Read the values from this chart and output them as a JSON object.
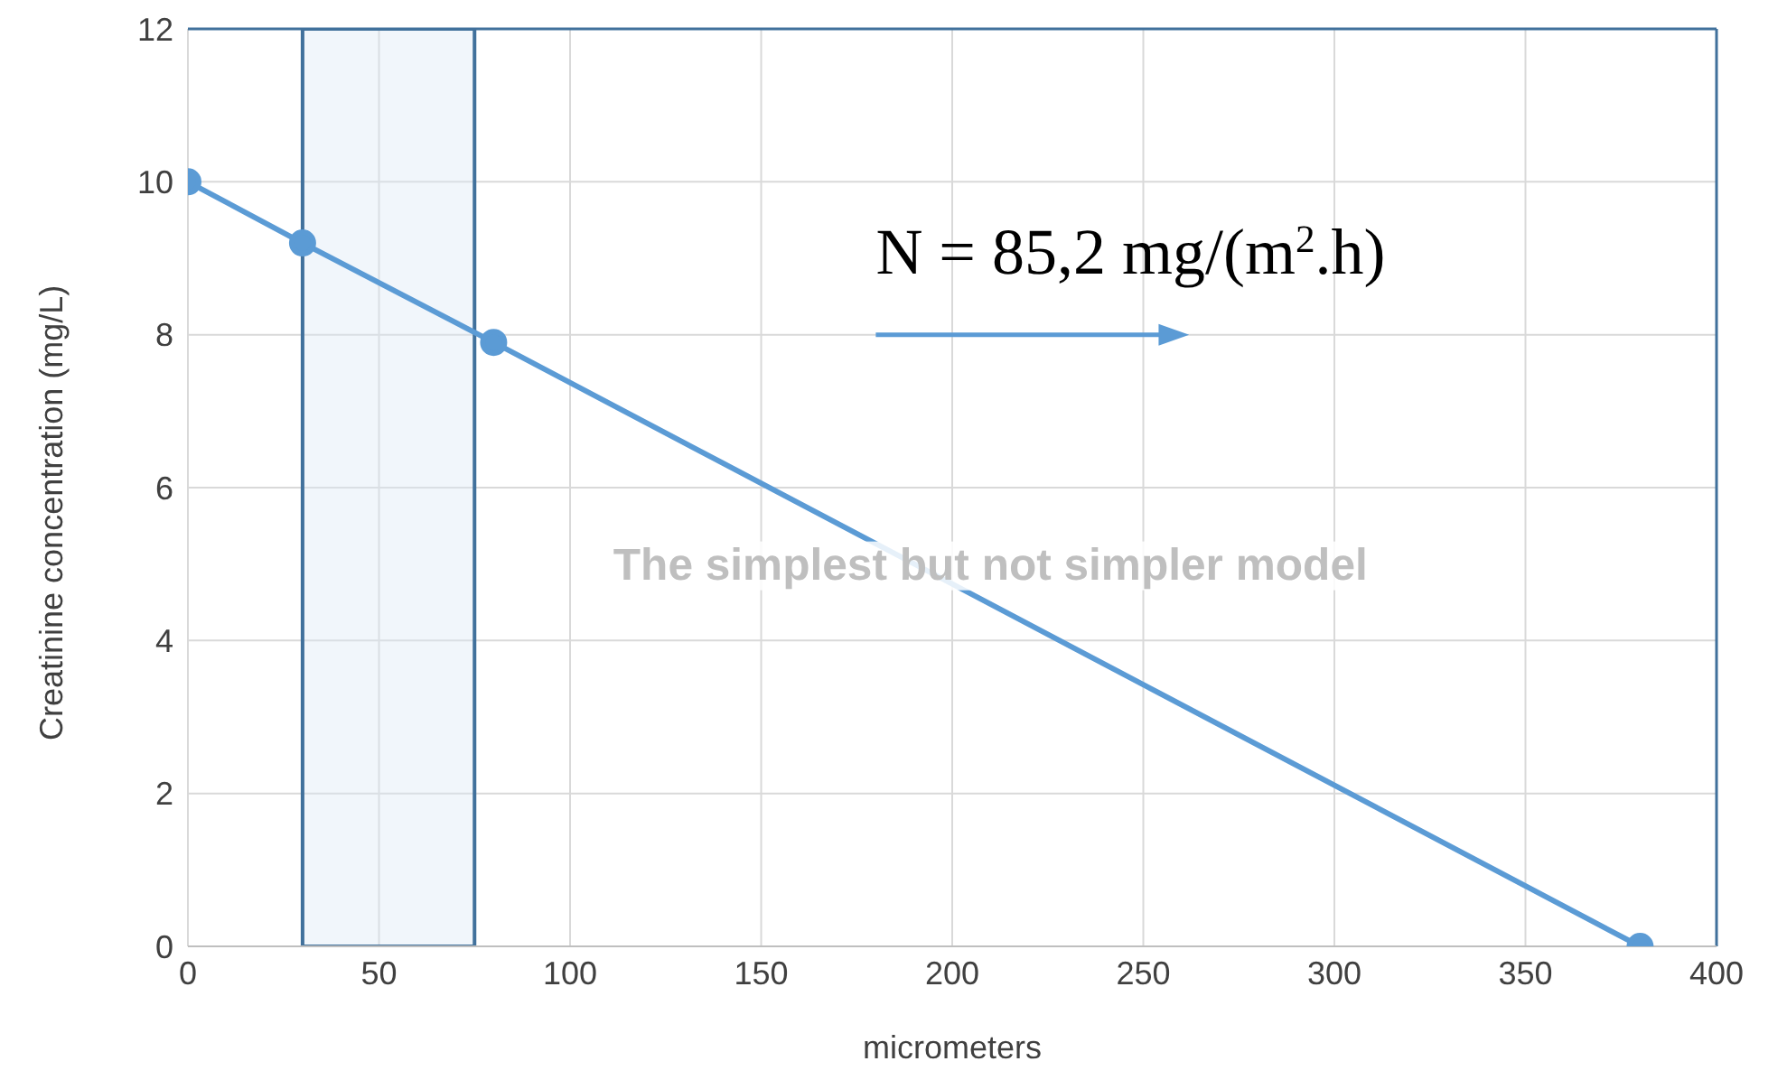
{
  "chart_data": {
    "type": "line",
    "xlabel": "micrometers",
    "ylabel": "Creatinine concentration (mg/L)",
    "x": [
      0,
      30,
      80,
      380
    ],
    "series": [
      {
        "color": "#5b9bd5",
        "values": [
          10,
          9.2,
          7.9,
          0
        ]
      }
    ],
    "xlim": [
      0,
      400
    ],
    "xticks": [
      0,
      50,
      100,
      150,
      200,
      250,
      300,
      350,
      400
    ],
    "ylim": [
      0,
      12
    ],
    "yticks": [
      0,
      2,
      4,
      6,
      8,
      10,
      12
    ],
    "grid": true,
    "marker": "circle",
    "line_style": "solid",
    "bands": [
      {
        "axis": "x",
        "from": 30,
        "to": 75,
        "color": "#dce9f6"
      }
    ],
    "annotations": [
      "N = 85,2  mg/(m$^{2}$.h)",
      "The simplest but not simpler model"
    ]
  }
}
